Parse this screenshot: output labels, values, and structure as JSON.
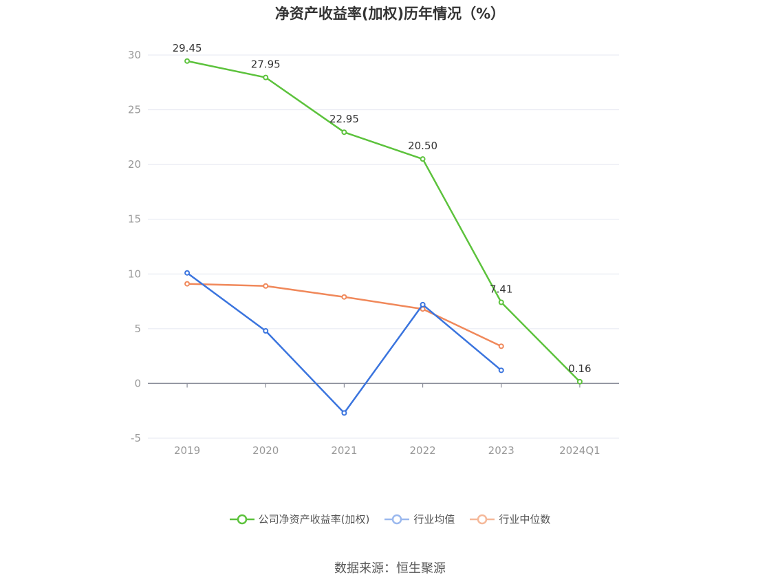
{
  "chart_data": {
    "type": "line",
    "title": "净资产收益率(加权)历年情况（%）",
    "categories": [
      "2019",
      "2020",
      "2021",
      "2022",
      "2023",
      "2024Q1"
    ],
    "ylim": [
      -5,
      30
    ],
    "yticks": [
      30,
      25,
      20,
      15,
      10,
      5,
      0,
      -5
    ],
    "grid": true,
    "legend_position": "bottom",
    "series": [
      {
        "name": "公司净资产收益率(加权)",
        "color": "#5cc23c",
        "values": [
          29.45,
          27.95,
          22.95,
          20.5,
          7.41,
          0.16
        ],
        "labels": [
          "29.45",
          "27.95",
          "22.95",
          "20.50",
          "7.41",
          "0.16"
        ]
      },
      {
        "name": "行业均值",
        "color": "#3a74de",
        "values": [
          10.1,
          4.8,
          -2.7,
          7.2,
          1.2,
          null
        ]
      },
      {
        "name": "行业中位数",
        "color": "#f0885a",
        "values": [
          9.1,
          8.9,
          7.9,
          6.8,
          3.4,
          null
        ]
      }
    ]
  },
  "source": "数据来源：恒生聚源"
}
